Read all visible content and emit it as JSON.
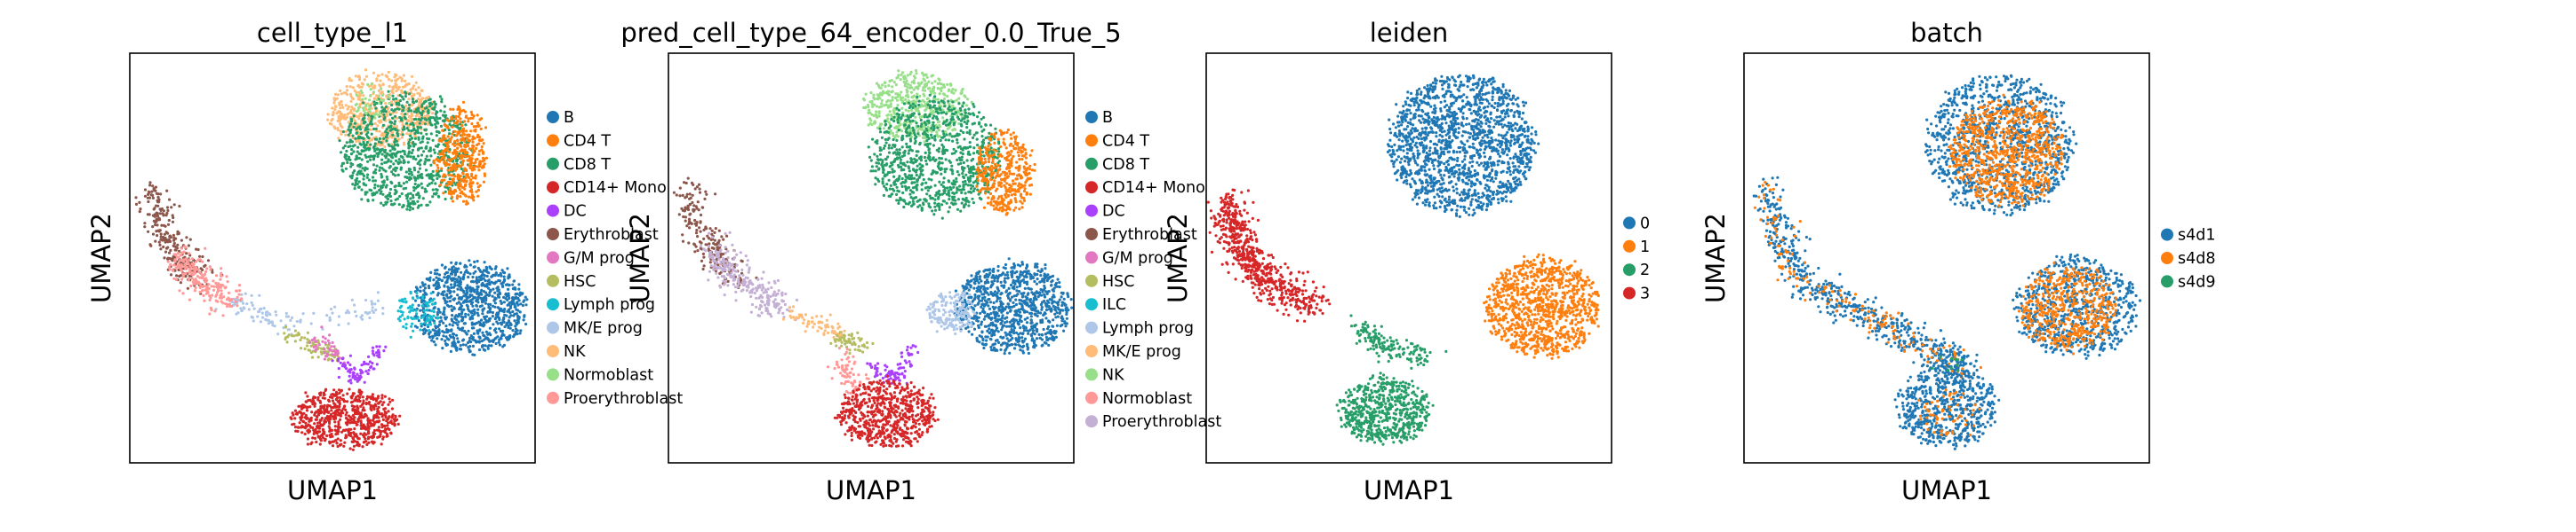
{
  "chart_data": [
    {
      "type": "scatter",
      "title": "cell_type_l1",
      "xlabel": "UMAP1",
      "ylabel": "UMAP2",
      "grid": false,
      "legend_position": "right",
      "legend": [
        {
          "label": "B",
          "color": "#1f77b4"
        },
        {
          "label": "CD4 T",
          "color": "#ff7f0e"
        },
        {
          "label": "CD8 T",
          "color": "#279e68"
        },
        {
          "label": "CD14+ Mono",
          "color": "#d62728"
        },
        {
          "label": "DC",
          "color": "#aa40fc"
        },
        {
          "label": "Erythroblast",
          "color": "#8c564b"
        },
        {
          "label": "G/M prog",
          "color": "#e377c2"
        },
        {
          "label": "HSC",
          "color": "#b5bd61"
        },
        {
          "label": "Lymph prog",
          "color": "#17becf"
        },
        {
          "label": "MK/E prog",
          "color": "#aec7e8"
        },
        {
          "label": "NK",
          "color": "#ffbb78"
        },
        {
          "label": "Normoblast",
          "color": "#98df8a"
        },
        {
          "label": "Proerythroblast",
          "color": "#ff9896"
        }
      ]
    },
    {
      "type": "scatter",
      "title": "pred_cell_type_64_encoder_0.0_True_5",
      "xlabel": "UMAP1",
      "ylabel": "UMAP2",
      "grid": false,
      "legend_position": "right",
      "legend": [
        {
          "label": "B",
          "color": "#1f77b4"
        },
        {
          "label": "CD4 T",
          "color": "#ff7f0e"
        },
        {
          "label": "CD8 T",
          "color": "#279e68"
        },
        {
          "label": "CD14+ Mono",
          "color": "#d62728"
        },
        {
          "label": "DC",
          "color": "#aa40fc"
        },
        {
          "label": "Erythroblast",
          "color": "#8c564b"
        },
        {
          "label": "G/M prog",
          "color": "#e377c2"
        },
        {
          "label": "HSC",
          "color": "#b5bd61"
        },
        {
          "label": "ILC",
          "color": "#17becf"
        },
        {
          "label": "Lymph prog",
          "color": "#aec7e8"
        },
        {
          "label": "MK/E prog",
          "color": "#ffbb78"
        },
        {
          "label": "NK",
          "color": "#98df8a"
        },
        {
          "label": "Normoblast",
          "color": "#ff9896"
        },
        {
          "label": "Proerythroblast",
          "color": "#c5b0d5"
        }
      ]
    },
    {
      "type": "scatter",
      "title": "leiden",
      "xlabel": "UMAP1",
      "ylabel": "UMAP2",
      "grid": false,
      "legend_position": "right",
      "legend": [
        {
          "label": "0",
          "color": "#1f77b4"
        },
        {
          "label": "1",
          "color": "#ff7f0e"
        },
        {
          "label": "2",
          "color": "#279e68"
        },
        {
          "label": "3",
          "color": "#d62728"
        }
      ]
    },
    {
      "type": "scatter",
      "title": "batch",
      "xlabel": "UMAP1",
      "ylabel": "UMAP2",
      "grid": false,
      "legend_position": "right",
      "legend": [
        {
          "label": "s4d1",
          "color": "#1f77b4"
        },
        {
          "label": "s4d8",
          "color": "#ff7f0e"
        },
        {
          "label": "s4d9",
          "color": "#279e68"
        }
      ]
    }
  ]
}
